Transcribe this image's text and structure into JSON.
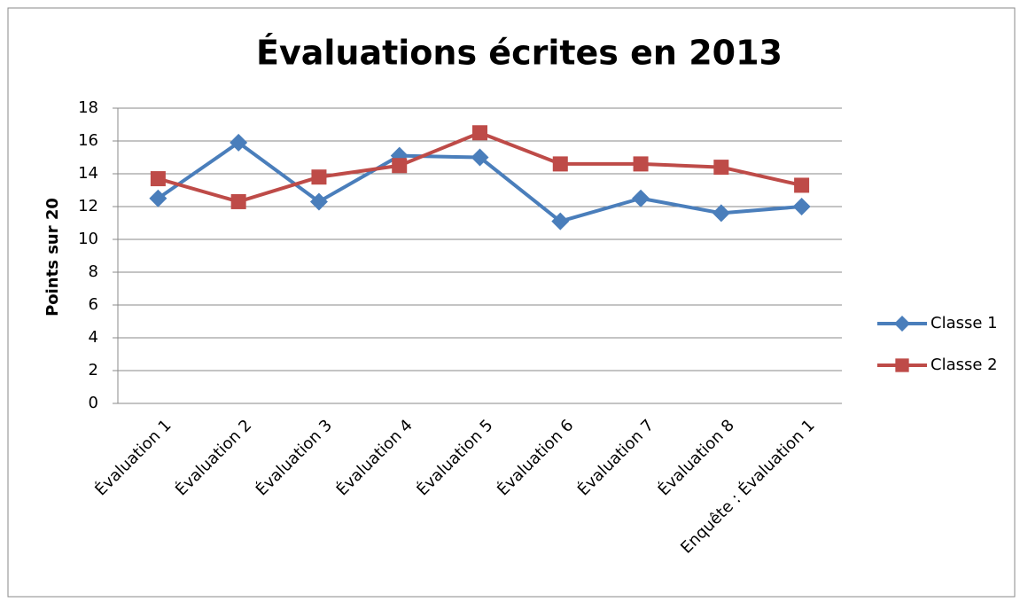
{
  "chart_data": {
    "type": "line",
    "title": "Évaluations écrites en 2013",
    "y_label": "Points sur 20",
    "categories": [
      "Évaluation 1",
      "Évaluation 2",
      "Évaluation 3",
      "Évaluation 4",
      "Évaluation 5",
      "Évaluation 6",
      "Évaluation 7",
      "Évaluation 8",
      "Enquête : Évaluation 1"
    ],
    "series": [
      {
        "name": "Classe 1",
        "color": "#4a7ebb",
        "marker": "diamond",
        "values": [
          12.5,
          15.9,
          12.3,
          15.1,
          15,
          11.1,
          12.5,
          11.6,
          12
        ]
      },
      {
        "name": "Classe 2",
        "color": "#be4b48",
        "marker": "square",
        "values": [
          13.7,
          12.3,
          13.8,
          14.5,
          16.5,
          14.6,
          14.6,
          14.4,
          13.3
        ]
      }
    ],
    "ylim": [
      0,
      18
    ],
    "yticks": [
      0,
      2,
      4,
      6,
      8,
      10,
      12,
      14,
      16,
      18
    ],
    "grid": true,
    "legend": "right"
  }
}
